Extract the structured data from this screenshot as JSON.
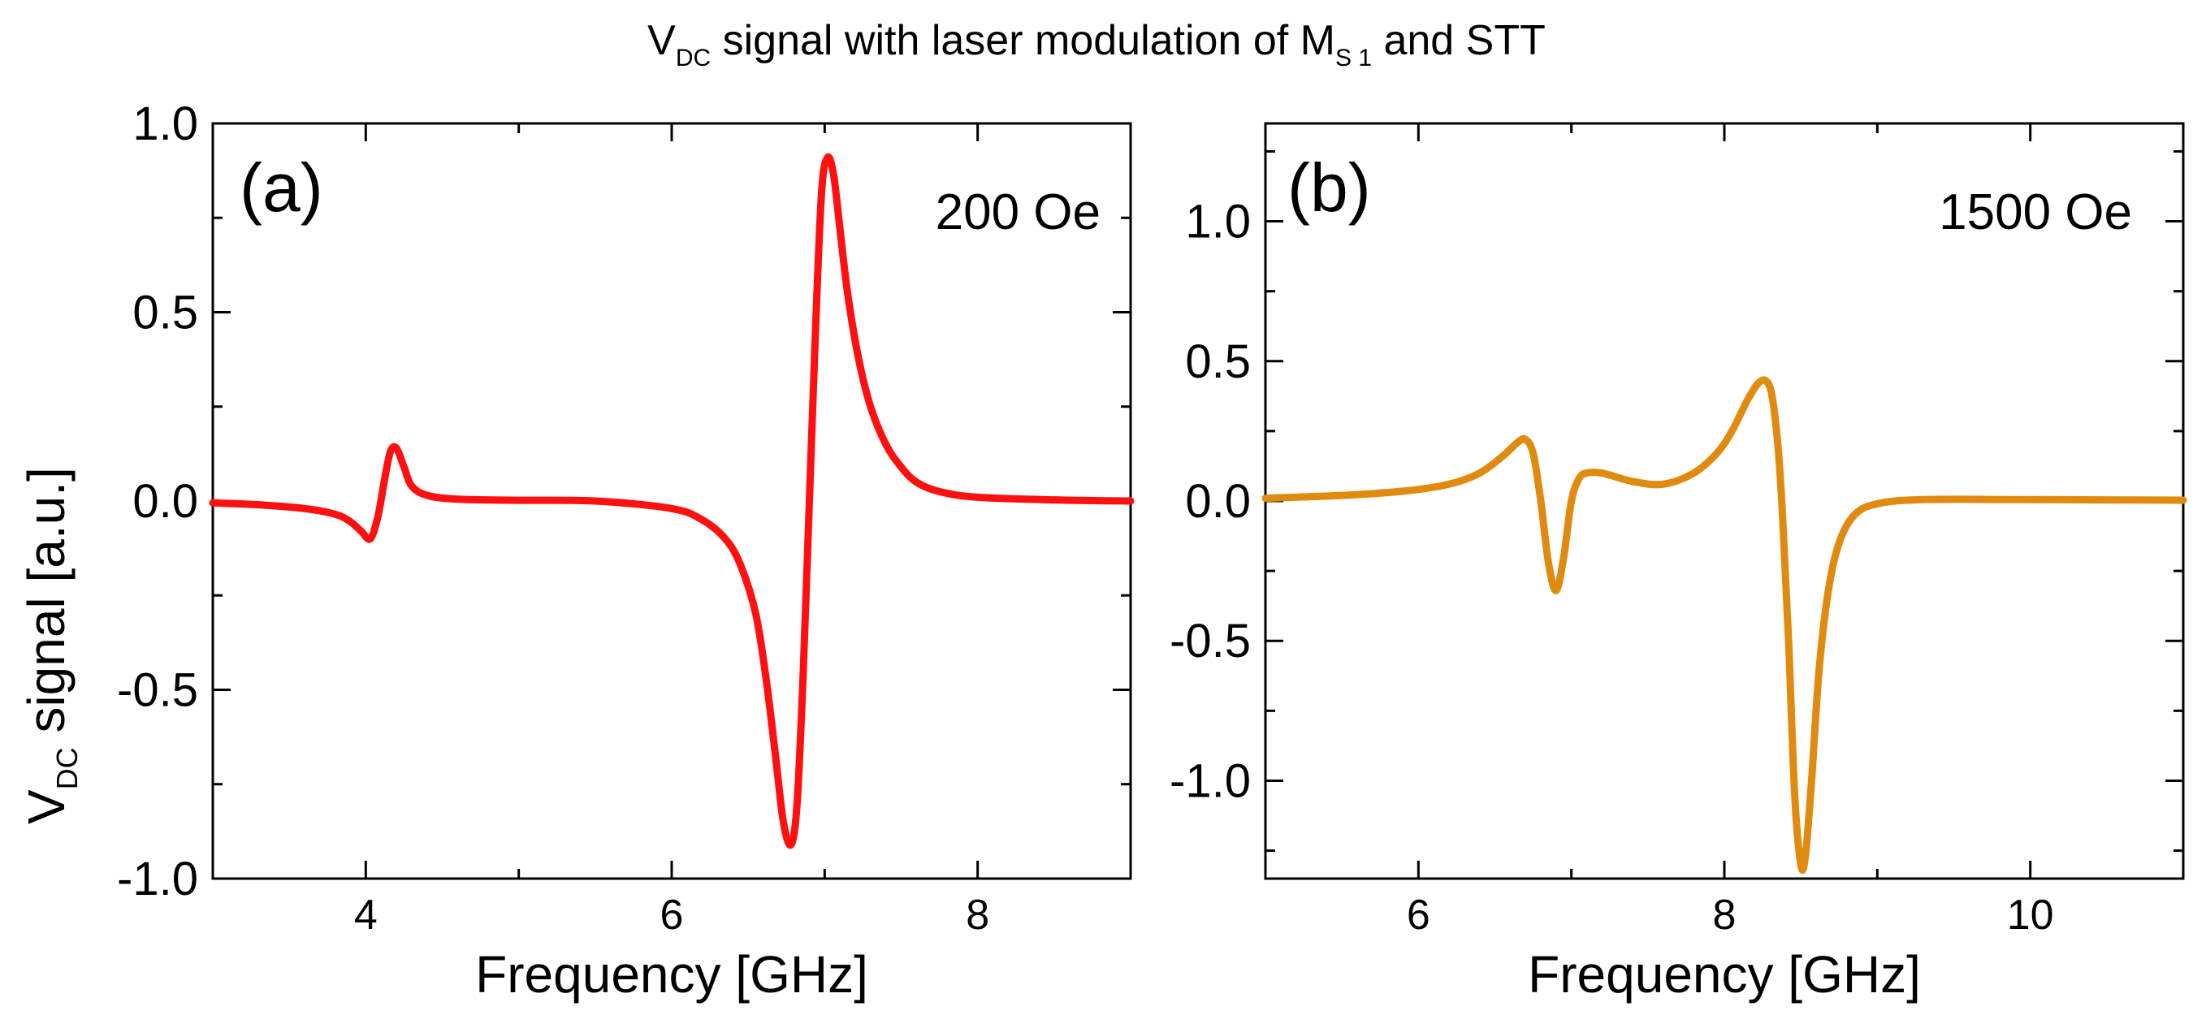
{
  "figure": {
    "title_main": "V",
    "title_sub1": "DC",
    "title_mid": " signal with laser modulation of M",
    "title_sub2": "S 1",
    "title_end": " and STT",
    "ylabel_main": "V",
    "ylabel_sub": "DC",
    "ylabel_end": " signal [a.u.]"
  },
  "chart_data": [
    {
      "type": "line",
      "panel_label": "(a)",
      "annotation": "200 Oe",
      "xlabel": "Frequency [GHz]",
      "ylabel": "VDC signal [a.u.]",
      "xlim": [
        3,
        9
      ],
      "ylim": [
        -1.0,
        1.0
      ],
      "xticks": [
        4,
        6,
        8
      ],
      "xtick_labels": [
        "4",
        "6",
        "8"
      ],
      "yticks": [
        -1.0,
        -0.5,
        0.0,
        0.5,
        1.0
      ],
      "ytick_labels": [
        "-1.0",
        "-0.5",
        "0.0",
        "0.5",
        "1.0"
      ],
      "color": "#ff1010",
      "series": [
        {
          "name": "200 Oe",
          "x": [
            3.0,
            3.3,
            3.6,
            3.8,
            3.9,
            3.97,
            4.03,
            4.08,
            4.12,
            4.16,
            4.2,
            4.25,
            4.3,
            4.4,
            4.6,
            5.0,
            5.5,
            6.0,
            6.2,
            6.35,
            6.45,
            6.55,
            6.62,
            6.68,
            6.73,
            6.78,
            6.82,
            6.86,
            6.9,
            6.94,
            6.98,
            7.02,
            7.06,
            7.1,
            7.15,
            7.22,
            7.3,
            7.4,
            7.5,
            7.6,
            7.75,
            8.0,
            8.5,
            9.0
          ],
          "y": [
            -0.005,
            -0.01,
            -0.02,
            -0.035,
            -0.055,
            -0.08,
            -0.1,
            -0.04,
            0.05,
            0.13,
            0.14,
            0.09,
            0.04,
            0.015,
            0.005,
            0.002,
            0.0,
            -0.02,
            -0.05,
            -0.1,
            -0.17,
            -0.3,
            -0.48,
            -0.68,
            -0.85,
            -0.91,
            -0.8,
            -0.45,
            0.0,
            0.45,
            0.82,
            0.91,
            0.86,
            0.72,
            0.55,
            0.38,
            0.25,
            0.15,
            0.09,
            0.05,
            0.025,
            0.01,
            0.003,
            0.0
          ]
        }
      ]
    },
    {
      "type": "line",
      "panel_label": "(b)",
      "annotation": "1500 Oe",
      "xlabel": "Frequency [GHz]",
      "ylabel": "VDC signal [a.u.]",
      "xlim": [
        5,
        11
      ],
      "ylim": [
        -1.35,
        1.35
      ],
      "xticks": [
        6,
        8,
        10
      ],
      "xtick_labels": [
        "6",
        "8",
        "10"
      ],
      "yticks": [
        -1.0,
        -0.5,
        0.0,
        0.5,
        1.0
      ],
      "ytick_labels": [
        "-1.0",
        "-0.5",
        "0.0",
        "0.5",
        "1.0"
      ],
      "color": "#e08a10",
      "series": [
        {
          "name": "1500 Oe",
          "x": [
            5.0,
            5.5,
            5.9,
            6.2,
            6.4,
            6.55,
            6.65,
            6.7,
            6.75,
            6.8,
            6.85,
            6.9,
            6.95,
            7.0,
            7.05,
            7.1,
            7.2,
            7.4,
            7.6,
            7.8,
            7.95,
            8.05,
            8.15,
            8.22,
            8.27,
            8.31,
            8.35,
            8.38,
            8.42,
            8.46,
            8.5,
            8.53,
            8.57,
            8.62,
            8.68,
            8.75,
            8.85,
            9.0,
            9.3,
            10.0,
            11.0
          ],
          "y": [
            0.01,
            0.02,
            0.035,
            0.06,
            0.1,
            0.16,
            0.21,
            0.22,
            0.17,
            0.0,
            -0.22,
            -0.32,
            -0.2,
            0.0,
            0.08,
            0.1,
            0.1,
            0.07,
            0.06,
            0.1,
            0.17,
            0.25,
            0.36,
            0.42,
            0.43,
            0.38,
            0.2,
            -0.05,
            -0.5,
            -1.05,
            -1.3,
            -1.27,
            -1.0,
            -0.6,
            -0.32,
            -0.15,
            -0.05,
            -0.01,
            0.005,
            0.005,
            0.003
          ]
        }
      ]
    }
  ]
}
